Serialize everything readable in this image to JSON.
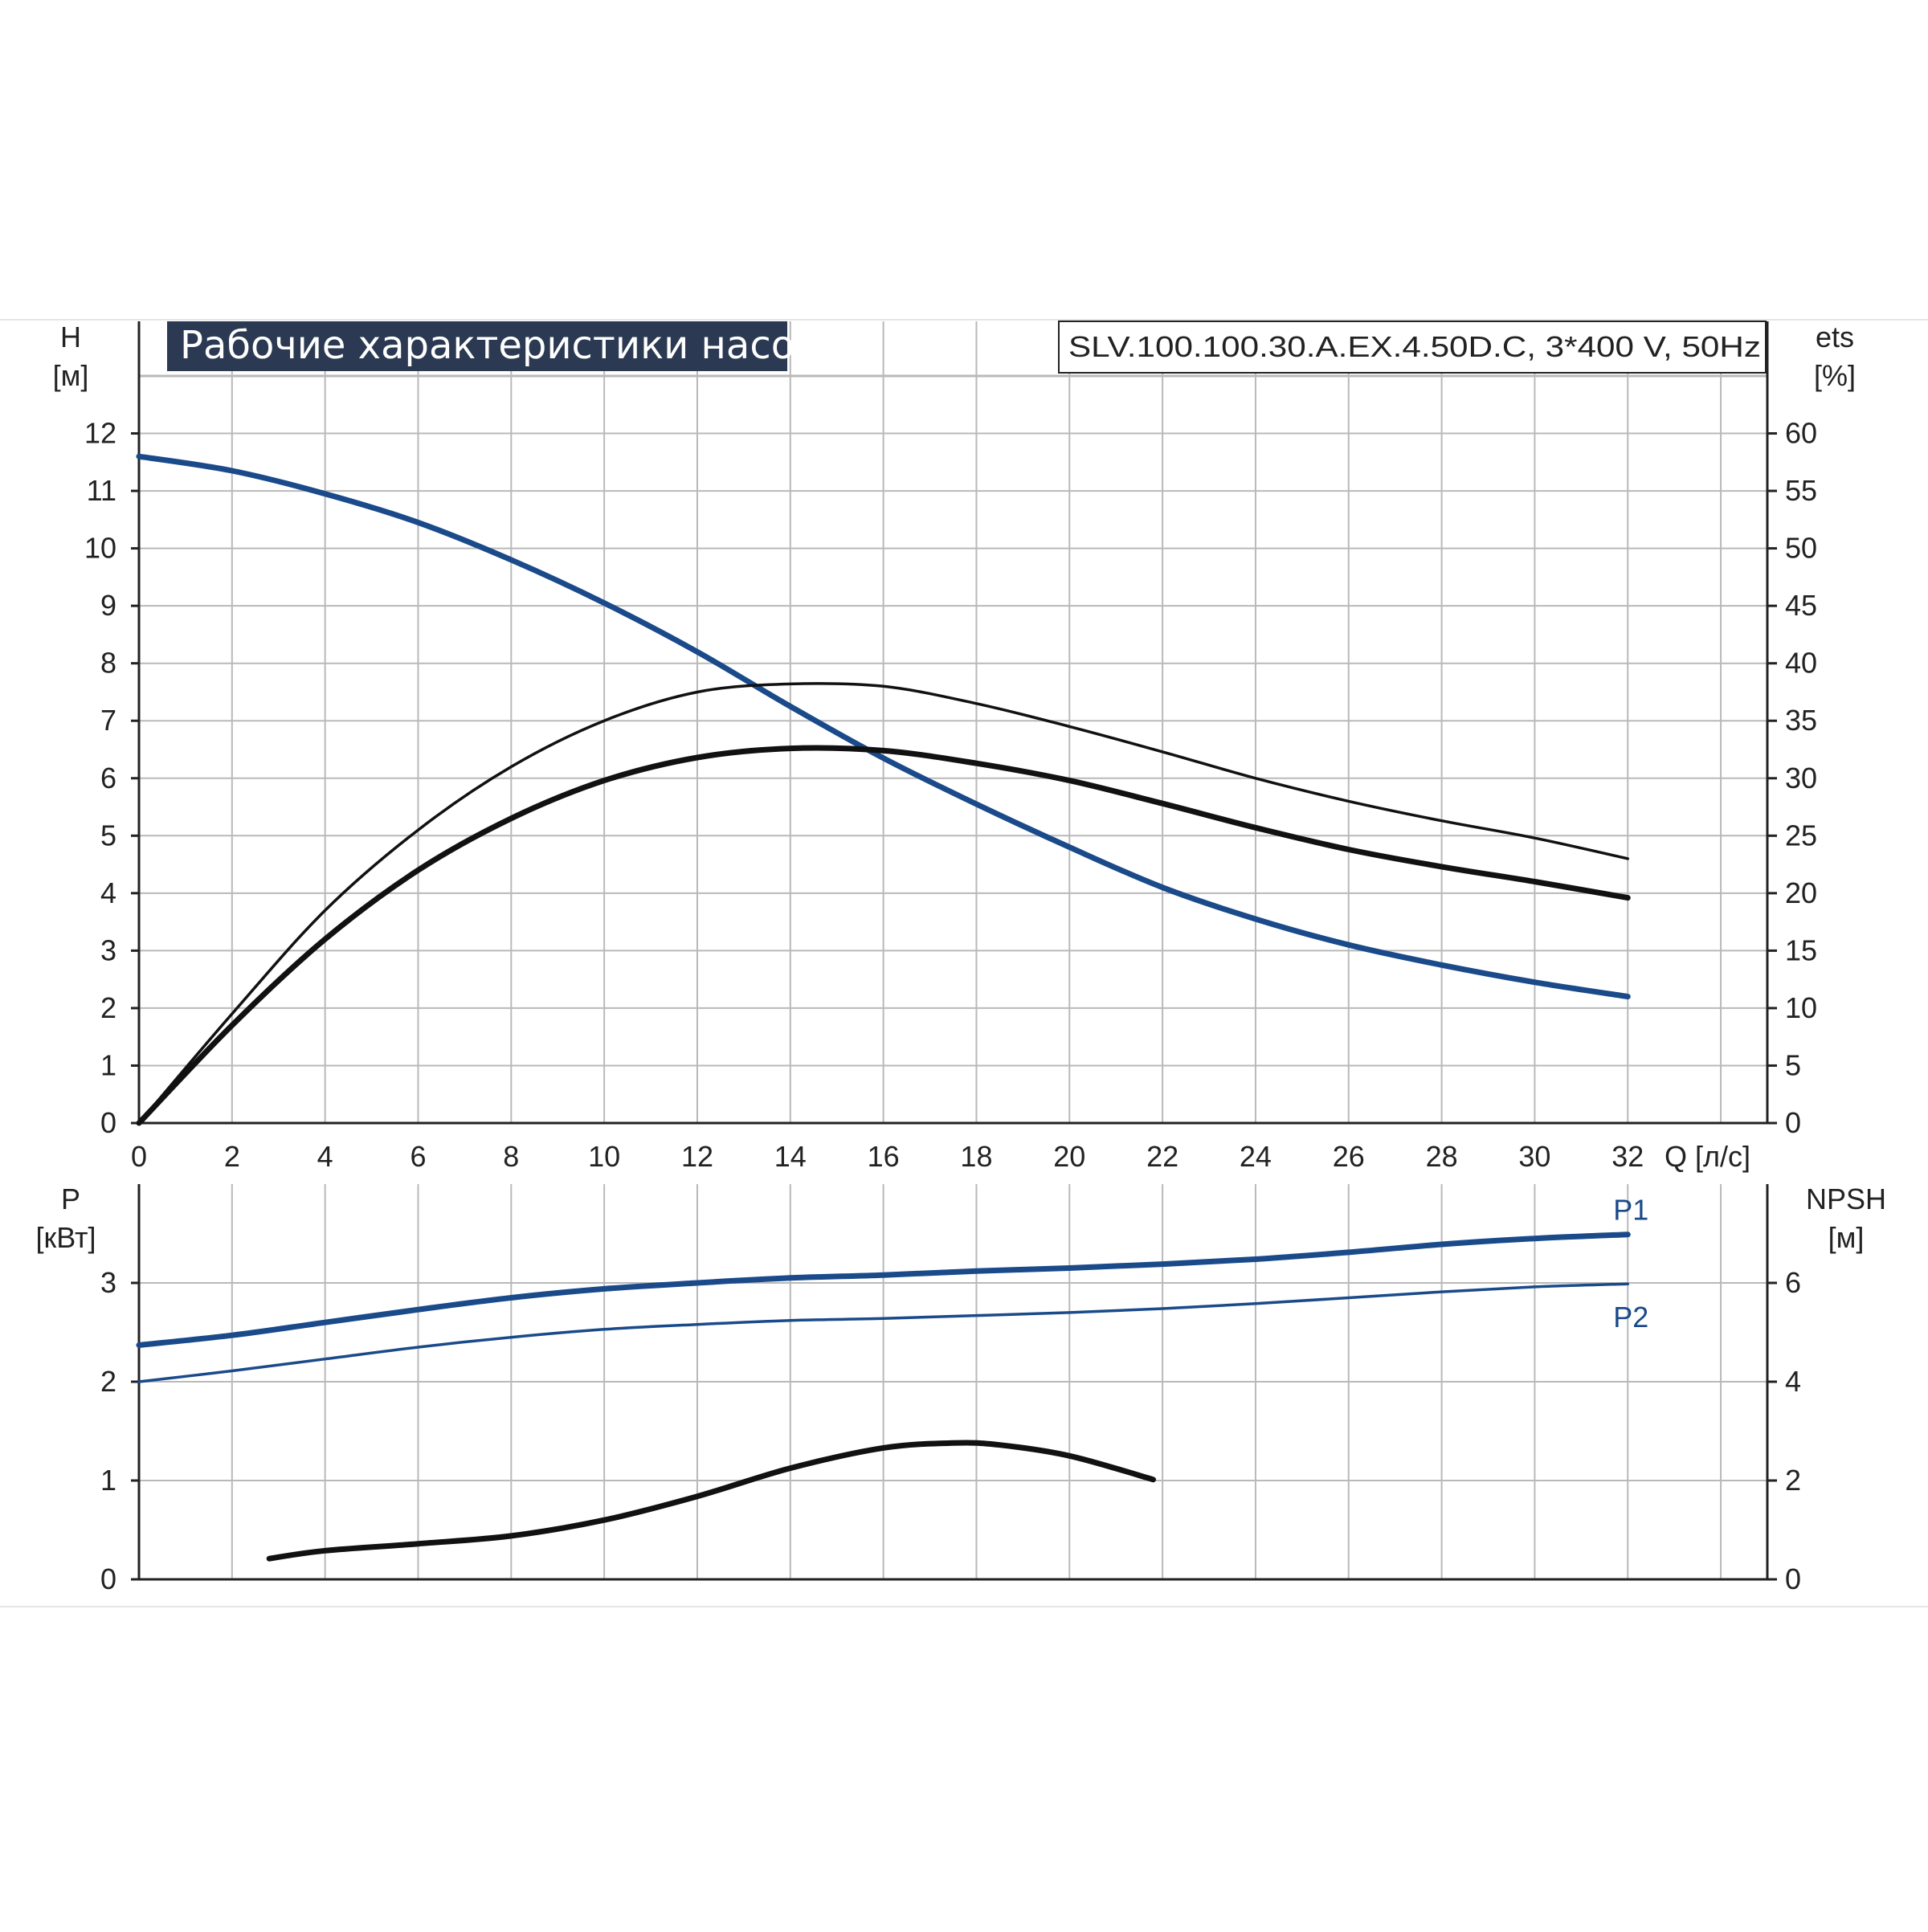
{
  "colors": {
    "blue": "#1a4a8a",
    "black": "#111111",
    "grid": "#b9b9b9",
    "title_bg": "#2b3a52",
    "axis": "#222222"
  },
  "chart_data": [
    {
      "type": "line",
      "title": "Рабочие характеристики насоса",
      "model": "SLV.100.100.30.A.EX.4.50D.C, 3*400 V, 50Hz",
      "xlabel": "Q [л/с]",
      "ylabel": [
        "H",
        "[м]"
      ],
      "y2label": [
        "ets",
        "[%]"
      ],
      "xlim": [
        0,
        35
      ],
      "ylim": [
        0,
        13
      ],
      "y2lim": [
        0,
        65
      ],
      "x_ticks": [
        0,
        2,
        4,
        6,
        8,
        10,
        12,
        14,
        16,
        18,
        20,
        22,
        24,
        26,
        28,
        30,
        32
      ],
      "x_tick_labels": [
        "0",
        "2",
        "4",
        "6",
        "8",
        "10",
        "12",
        "14",
        "16",
        "18",
        "20",
        "22",
        "24",
        "26",
        "28",
        "30",
        "32"
      ],
      "y_ticks": [
        "0",
        "1",
        "2",
        "3",
        "4",
        "5",
        "6",
        "7",
        "8",
        "9",
        "10",
        "11",
        "12"
      ],
      "y2_ticks": [
        "0",
        "5",
        "10",
        "15",
        "20",
        "25",
        "30",
        "35",
        "40",
        "45",
        "50",
        "55",
        "60"
      ],
      "grid": true,
      "series": [
        {
          "axis": "left",
          "color": "blue",
          "weight": "thick",
          "points": [
            [
              0,
              11.6
            ],
            [
              2,
              11.35
            ],
            [
              4,
              10.95
            ],
            [
              6,
              10.45
            ],
            [
              8,
              9.8
            ],
            [
              10,
              9.05
            ],
            [
              12,
              8.2
            ],
            [
              14,
              7.25
            ],
            [
              16,
              6.35
            ],
            [
              18,
              5.55
            ],
            [
              20,
              4.8
            ],
            [
              22,
              4.1
            ],
            [
              24,
              3.55
            ],
            [
              26,
              3.1
            ],
            [
              28,
              2.75
            ],
            [
              30,
              2.45
            ],
            [
              32,
              2.2
            ]
          ]
        },
        {
          "axis": "right",
          "color": "black",
          "weight": "thin",
          "points": [
            [
              0,
              0
            ],
            [
              2,
              9.5
            ],
            [
              4,
              18.5
            ],
            [
              6,
              25.5
            ],
            [
              8,
              31
            ],
            [
              10,
              35
            ],
            [
              12,
              37.5
            ],
            [
              14,
              38.2
            ],
            [
              16,
              38
            ],
            [
              18,
              36.5
            ],
            [
              20,
              34.5
            ],
            [
              22,
              32.3
            ],
            [
              24,
              30
            ],
            [
              26,
              28
            ],
            [
              28,
              26.3
            ],
            [
              30,
              24.8
            ],
            [
              32,
              23
            ]
          ]
        },
        {
          "axis": "right",
          "color": "black",
          "weight": "thick",
          "points": [
            [
              0,
              0
            ],
            [
              2,
              8.5
            ],
            [
              4,
              16
            ],
            [
              6,
              22
            ],
            [
              8,
              26.5
            ],
            [
              10,
              29.8
            ],
            [
              12,
              31.8
            ],
            [
              14,
              32.6
            ],
            [
              16,
              32.4
            ],
            [
              18,
              31.3
            ],
            [
              20,
              29.8
            ],
            [
              22,
              27.8
            ],
            [
              24,
              25.7
            ],
            [
              26,
              23.8
            ],
            [
              28,
              22.3
            ],
            [
              30,
              21
            ],
            [
              32,
              19.6
            ]
          ]
        }
      ]
    },
    {
      "type": "line",
      "ylabel": [
        "P",
        "[кВт]"
      ],
      "y2label": [
        "NPSH",
        "[м]"
      ],
      "xlim": [
        0,
        35
      ],
      "ylim": [
        0,
        4
      ],
      "y2lim": [
        0,
        8
      ],
      "y_ticks": [
        "0",
        "1",
        "2",
        "3"
      ],
      "y2_ticks": [
        "0",
        "2",
        "4",
        "6"
      ],
      "grid": true,
      "series": [
        {
          "name": "P1",
          "axis": "left",
          "color": "blue",
          "weight": "thick",
          "points": [
            [
              0,
              2.37
            ],
            [
              2,
              2.47
            ],
            [
              4,
              2.6
            ],
            [
              6,
              2.73
            ],
            [
              8,
              2.85
            ],
            [
              10,
              2.94
            ],
            [
              12,
              3.0
            ],
            [
              14,
              3.05
            ],
            [
              16,
              3.08
            ],
            [
              18,
              3.12
            ],
            [
              20,
              3.15
            ],
            [
              22,
              3.19
            ],
            [
              24,
              3.24
            ],
            [
              26,
              3.31
            ],
            [
              28,
              3.39
            ],
            [
              30,
              3.45
            ],
            [
              32,
              3.49
            ]
          ]
        },
        {
          "name": "P2",
          "axis": "left",
          "color": "blue",
          "weight": "thin",
          "points": [
            [
              0,
              2.0
            ],
            [
              2,
              2.11
            ],
            [
              4,
              2.23
            ],
            [
              6,
              2.35
            ],
            [
              8,
              2.45
            ],
            [
              10,
              2.53
            ],
            [
              12,
              2.58
            ],
            [
              14,
              2.62
            ],
            [
              16,
              2.64
            ],
            [
              18,
              2.67
            ],
            [
              20,
              2.7
            ],
            [
              22,
              2.74
            ],
            [
              24,
              2.79
            ],
            [
              26,
              2.85
            ],
            [
              28,
              2.91
            ],
            [
              30,
              2.96
            ],
            [
              32,
              2.99
            ]
          ]
        },
        {
          "name": "",
          "axis": "right",
          "color": "black",
          "weight": "thick",
          "points": [
            [
              2.8,
              0.42
            ],
            [
              4,
              0.58
            ],
            [
              6,
              0.72
            ],
            [
              8,
              0.88
            ],
            [
              10,
              1.2
            ],
            [
              12,
              1.68
            ],
            [
              14,
              2.25
            ],
            [
              16,
              2.66
            ],
            [
              17.5,
              2.76
            ],
            [
              18.5,
              2.72
            ],
            [
              20,
              2.5
            ],
            [
              21.8,
              2.02
            ]
          ]
        }
      ]
    }
  ]
}
